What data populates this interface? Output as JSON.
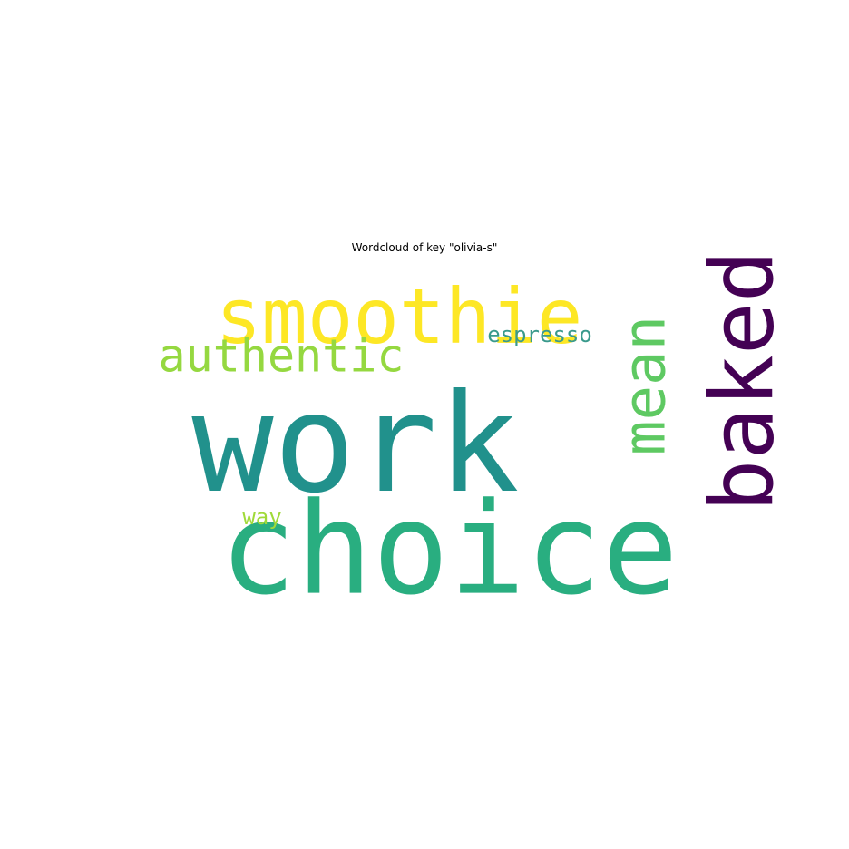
{
  "chart_data": {
    "type": "wordcloud",
    "title": "Wordcloud of key \"olivia-s\"",
    "words": [
      {
        "text": "work",
        "color": "#21918c",
        "orientation": "horizontal"
      },
      {
        "text": "choice",
        "color": "#29ae80",
        "orientation": "horizontal"
      },
      {
        "text": "smoothie",
        "color": "#fde725",
        "orientation": "horizontal"
      },
      {
        "text": "baked",
        "color": "#440154",
        "orientation": "vertical"
      },
      {
        "text": "mean",
        "color": "#5ec962",
        "orientation": "vertical"
      },
      {
        "text": "authentic",
        "color": "#95d840",
        "orientation": "horizontal"
      },
      {
        "text": "espresso",
        "color": "#3a9a8c",
        "orientation": "horizontal"
      },
      {
        "text": "way",
        "color": "#a0da39",
        "orientation": "horizontal"
      }
    ]
  }
}
